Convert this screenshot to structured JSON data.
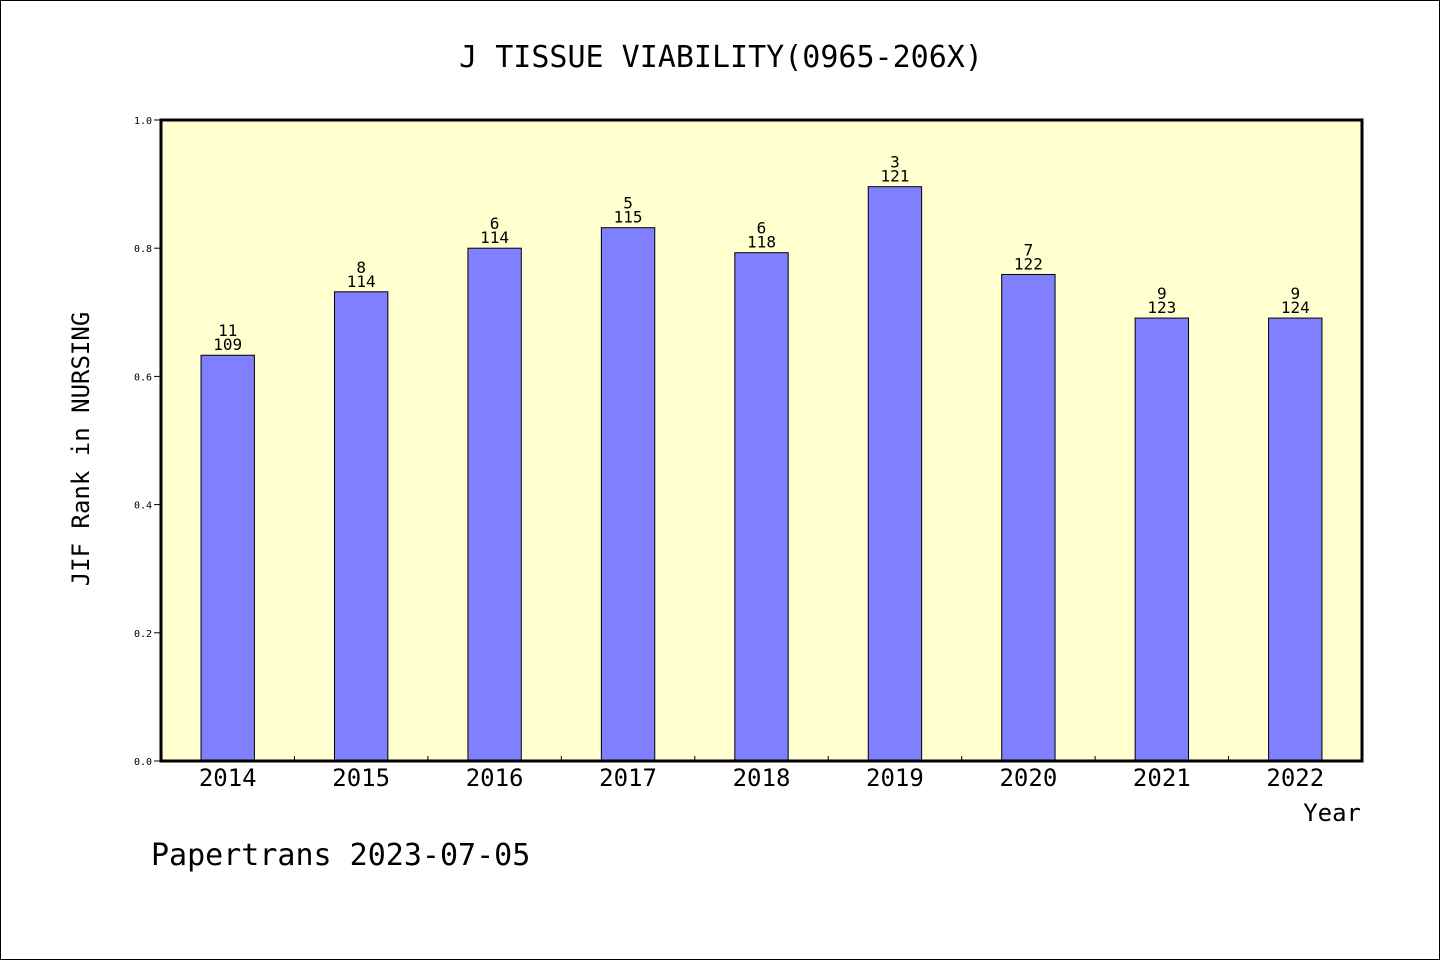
{
  "chart_data": {
    "type": "bar",
    "title": "J TISSUE VIABILITY(0965-206X)",
    "xlabel": "Year",
    "ylabel": "JIF Rank in NURSING",
    "ylim": [
      0,
      1.0
    ],
    "yticks": [
      "0.0",
      "0.2",
      "0.4",
      "0.6",
      "0.8",
      "1.0"
    ],
    "grid": false,
    "plot_background": "#ffffd0",
    "bar_color": "#8080ff",
    "categories": [
      "2014",
      "2015",
      "2016",
      "2017",
      "2018",
      "2019",
      "2020",
      "2021",
      "2022"
    ],
    "values": [
      0.633,
      0.732,
      0.8,
      0.832,
      0.793,
      0.896,
      0.759,
      0.691,
      0.691
    ],
    "ranks": [
      "11",
      "8",
      "6",
      "5",
      "6",
      "3",
      "7",
      "9",
      "9"
    ],
    "totals": [
      "109",
      "114",
      "114",
      "115",
      "118",
      "121",
      "122",
      "123",
      "124"
    ]
  },
  "footer": "Papertrans 2023-07-05"
}
